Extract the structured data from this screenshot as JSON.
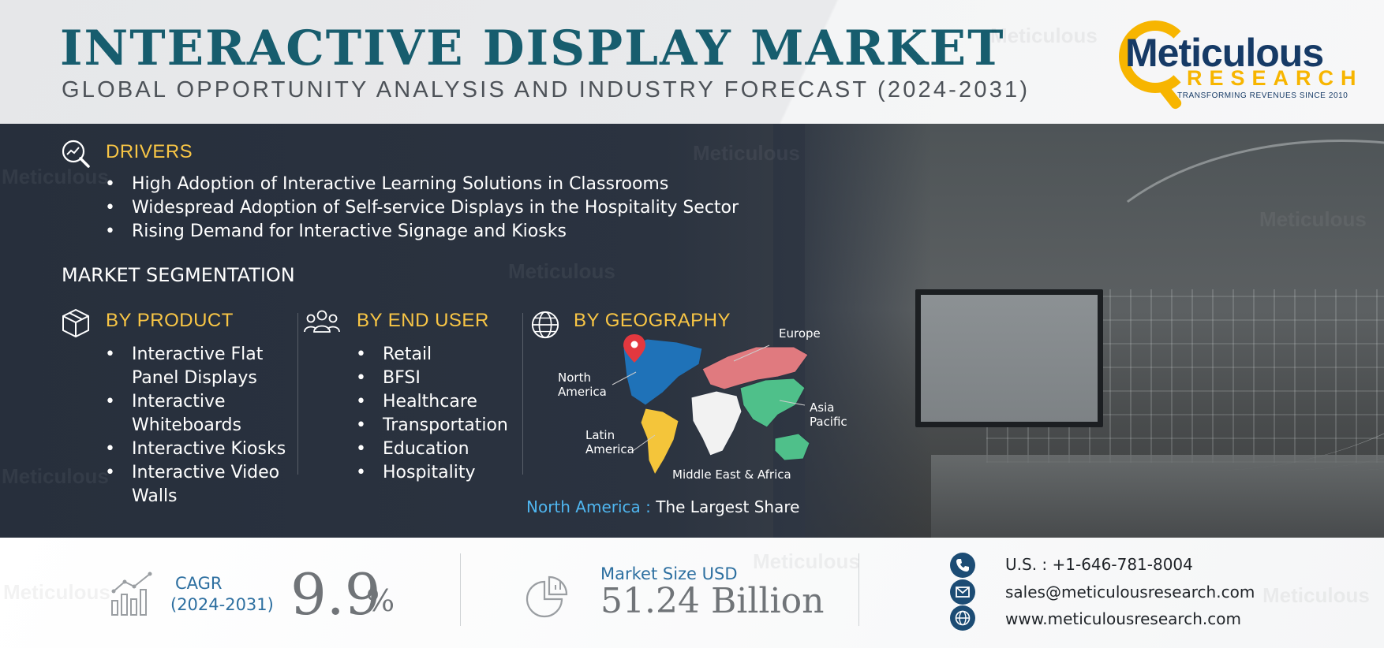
{
  "header": {
    "title": "INTERACTIVE DISPLAY MARKET",
    "subtitle": "GLOBAL OPPORTUNITY ANALYSIS AND INDUSTRY FORECAST (2024-2031)",
    "logo": {
      "word": "Meticulous",
      "research": "RESEARCH",
      "tagline": "TRANSFORMING REVENUES SINCE 2010"
    },
    "watermark": "Meticulous"
  },
  "drivers": {
    "heading": "DRIVERS",
    "icon": "magnifier-chart-icon",
    "items": [
      "High Adoption of Interactive Learning Solutions in Classrooms",
      "Widespread Adoption of Self-service Displays in the Hospitality Sector",
      "Rising Demand for Interactive Signage and Kiosks"
    ]
  },
  "segmentation": {
    "heading": "MARKET SEGMENTATION",
    "by_product": {
      "heading": "BY PRODUCT",
      "icon": "box-icon",
      "items": [
        "Interactive Flat Panel Displays",
        "Interactive Whiteboards",
        "Interactive Kiosks",
        "Interactive Video Walls"
      ]
    },
    "by_end_user": {
      "heading": "BY END USER",
      "icon": "people-icon",
      "items": [
        "Retail",
        "BFSI",
        "Healthcare",
        "Transportation",
        "Education",
        "Hospitality"
      ]
    },
    "by_geography": {
      "heading": "BY GEOGRAPHY",
      "icon": "globe-icon",
      "regions": {
        "north_america_1": "North",
        "north_america_2": "America",
        "europe": "Europe",
        "asia_pacific_1": "Asia",
        "asia_pacific_2": "Pacific",
        "latin_america_1": "Latin",
        "latin_america_2": "America",
        "mea": "Middle East & Africa"
      },
      "largest_region": "North America :",
      "largest_text": " The Largest Share",
      "colors": {
        "north_america": "#1f72b8",
        "europe": "#e07a7f",
        "asia_pacific": "#4fc08a",
        "latin_america": "#f4c53a",
        "mea": "#f2f2f2",
        "oceania": "#4fc08a"
      }
    }
  },
  "footer": {
    "cagr_label": "CAGR",
    "cagr_period": "(2024-2031)",
    "cagr_value": "9.9",
    "cagr_unit": "%",
    "market_size_label": "Market Size USD",
    "market_size_value": "51.24 Billion",
    "contacts": [
      {
        "icon": "phone-icon",
        "text": "U.S. : +1-646-781-8004"
      },
      {
        "icon": "mail-icon",
        "text": "sales@meticulousresearch.com"
      },
      {
        "icon": "web-icon",
        "text": "www.meticulousresearch.com"
      }
    ]
  },
  "colors": {
    "title": "#175d6e",
    "accent_yellow": "#f9c645",
    "accent_blue": "#2d6fa0",
    "brand_navy": "#163a66",
    "brand_gold": "#f7b500"
  }
}
